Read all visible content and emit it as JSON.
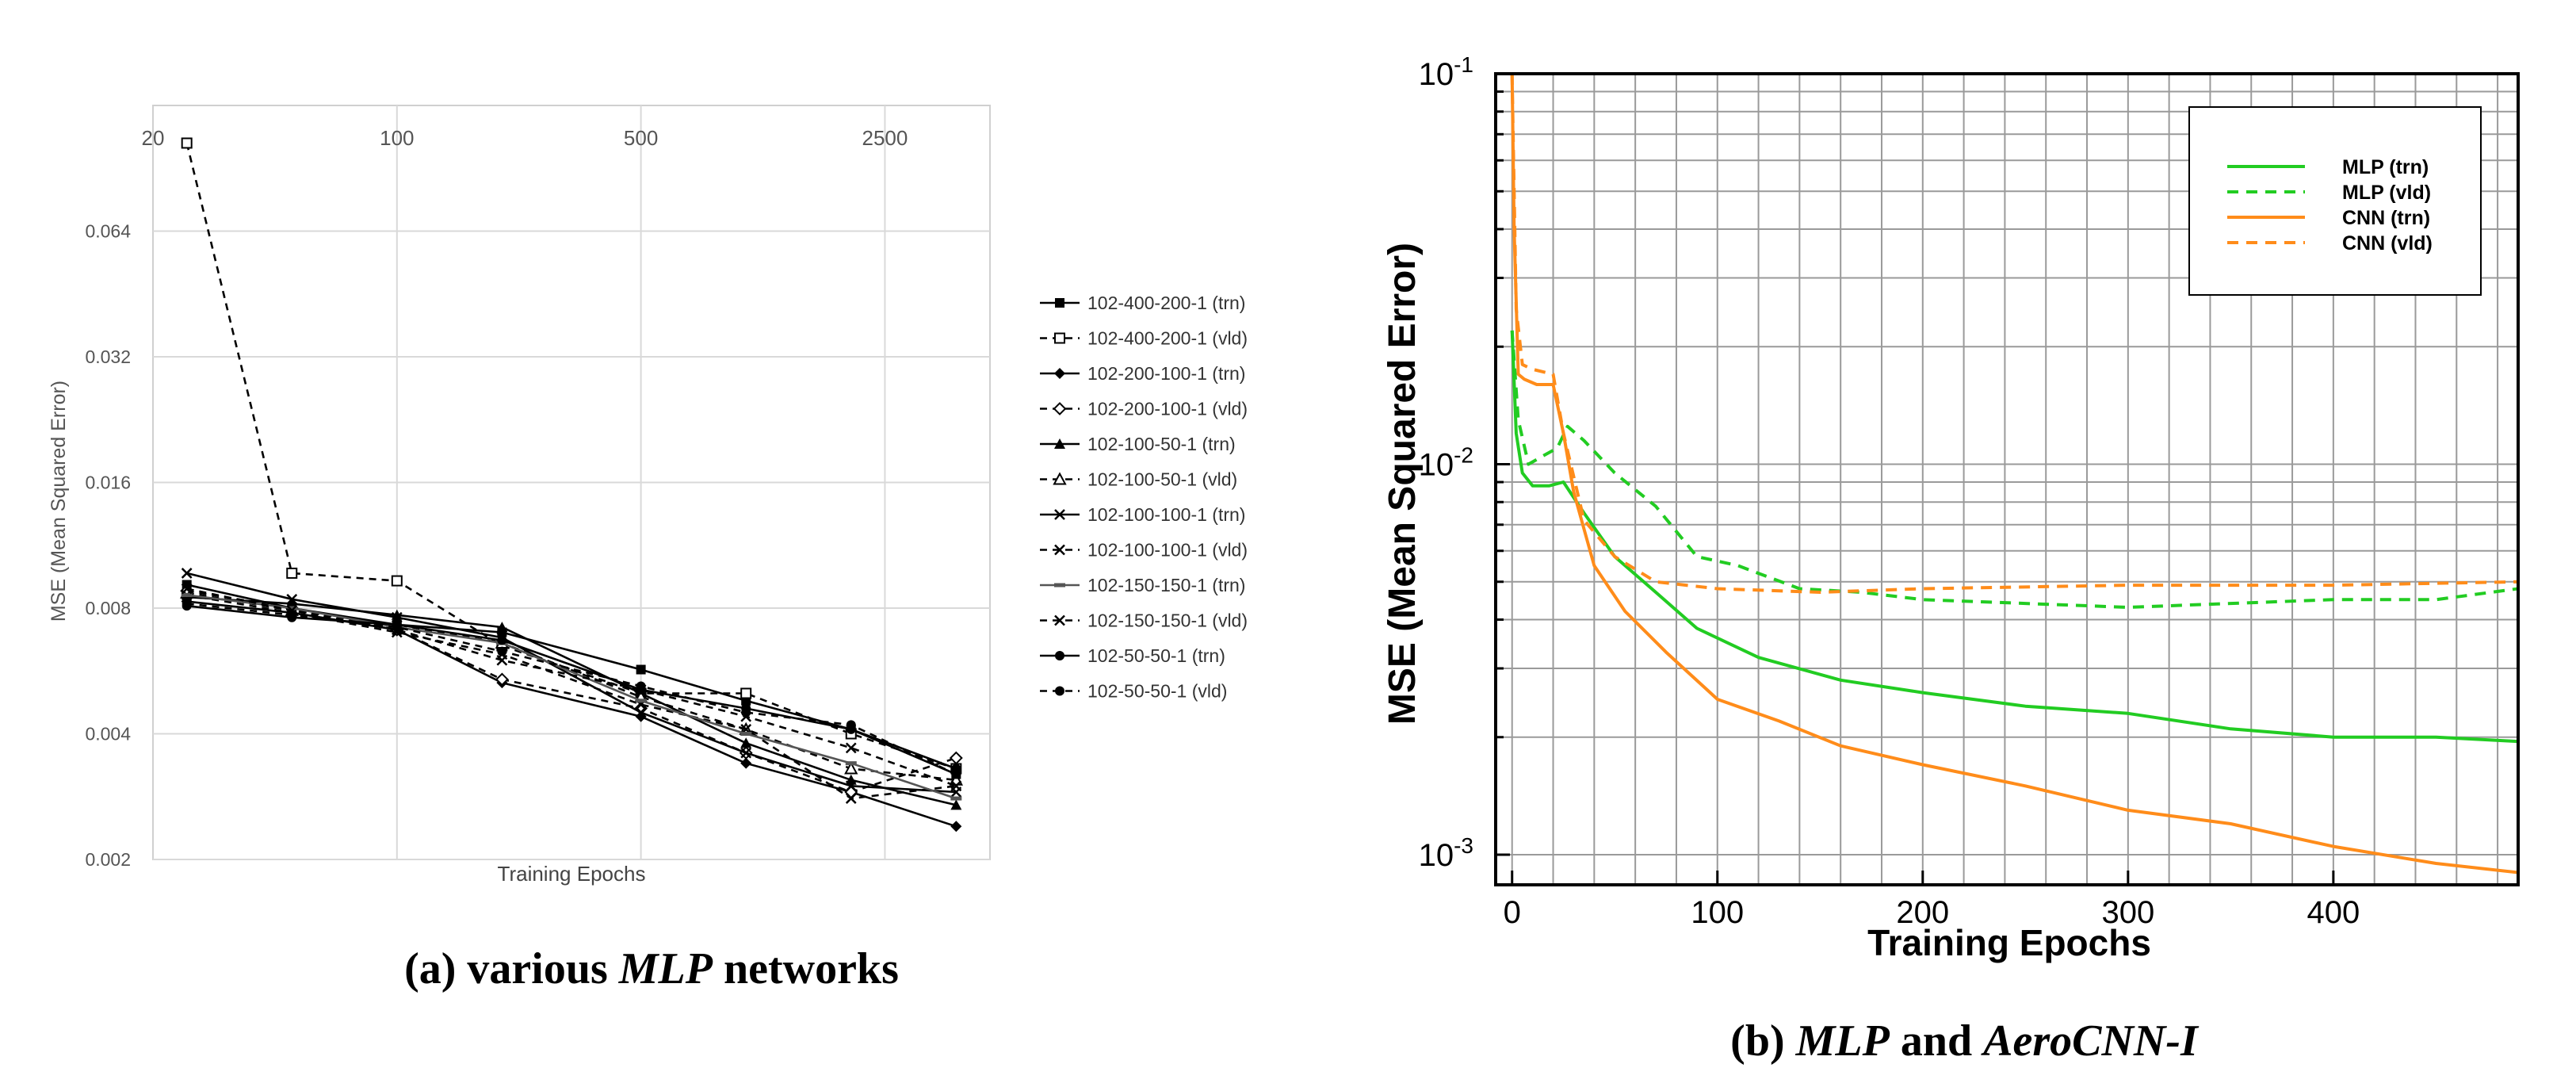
{
  "chart_data": [
    {
      "type": "line",
      "xlabel": "Training Epochs",
      "ylabel": "MSE (Mean Squared Error)",
      "x_scale": "log",
      "y_scale": "log",
      "xlim": [
        20,
        5000
      ],
      "ylim": [
        0.002,
        0.128
      ],
      "x_ticks": [
        "20",
        "100",
        "500",
        "2500"
      ],
      "x_tick_values": [
        20,
        100,
        500,
        2500
      ],
      "y_ticks": [
        "0.064",
        "0.032",
        "0.016",
        "0.008",
        "0.004",
        "0.002"
      ],
      "y_tick_values": [
        0.064,
        0.032,
        0.016,
        0.008,
        0.004,
        0.002
      ],
      "grid": true,
      "legend_position": "right",
      "x": [
        25,
        50,
        100,
        200,
        500,
        1000,
        2000,
        4000
      ],
      "series": [
        {
          "name": "102-400-200-1 (trn)",
          "marker": "square-filled",
          "dash": false,
          "values": [
            0.0091,
            0.008,
            0.0073,
            0.007,
            0.0057,
            0.0048,
            0.0041,
            0.0032
          ]
        },
        {
          "name": "102-400-200-1 (vld)",
          "marker": "square-open",
          "dash": true,
          "values": [
            0.104,
            0.0097,
            0.0093,
            0.0065,
            0.005,
            0.005,
            0.004,
            0.0033
          ]
        },
        {
          "name": "102-200-100-1 (trn)",
          "marker": "diamond-filled",
          "dash": false,
          "values": [
            0.0083,
            0.0078,
            0.0071,
            0.0053,
            0.0044,
            0.0034,
            0.0029,
            0.0024
          ]
        },
        {
          "name": "102-200-100-1 (vld)",
          "marker": "diamond-open",
          "dash": true,
          "values": [
            0.0088,
            0.008,
            0.0071,
            0.0054,
            0.0046,
            0.0036,
            0.0029,
            0.0035
          ]
        },
        {
          "name": "102-100-50-1 (trn)",
          "marker": "triangle-filled",
          "dash": false,
          "values": [
            0.0085,
            0.0082,
            0.0077,
            0.0072,
            0.005,
            0.0038,
            0.0031,
            0.0027
          ]
        },
        {
          "name": "102-100-50-1 (vld)",
          "marker": "triangle-open",
          "dash": true,
          "values": [
            0.0087,
            0.0079,
            0.0073,
            0.0066,
            0.0049,
            0.0041,
            0.0033,
            0.0031
          ]
        },
        {
          "name": "102-100-100-1 (trn)",
          "marker": "x",
          "dash": false,
          "values": [
            0.0097,
            0.0084,
            0.0076,
            0.0068,
            0.0045,
            0.0036,
            0.003,
            0.0029
          ]
        },
        {
          "name": "102-100-100-1 (vld)",
          "marker": "x",
          "dash": true,
          "values": [
            0.0086,
            0.0078,
            0.007,
            0.0062,
            0.0047,
            0.0041,
            0.0028,
            0.003
          ]
        },
        {
          "name": "102-150-150-1 (trn)",
          "marker": "dash",
          "dash": false,
          "values": [
            0.0086,
            0.008,
            0.0072,
            0.0066,
            0.0048,
            0.004,
            0.0034,
            0.0028
          ]
        },
        {
          "name": "102-150-150-1 (vld)",
          "marker": "x",
          "dash": true,
          "values": [
            0.0089,
            0.0079,
            0.0071,
            0.006,
            0.0051,
            0.0044,
            0.0037,
            0.003
          ]
        },
        {
          "name": "102-50-50-1 (trn)",
          "marker": "circle-filled",
          "dash": false,
          "values": [
            0.0081,
            0.0076,
            0.0073,
            0.0067,
            0.0051,
            0.0046,
            0.0041,
            0.0033
          ]
        },
        {
          "name": "102-50-50-1 (vld)",
          "marker": "circle-filled",
          "dash": true,
          "values": [
            0.0082,
            0.0077,
            0.0072,
            0.0063,
            0.0052,
            0.0045,
            0.0042,
            0.0032
          ]
        }
      ]
    },
    {
      "type": "line",
      "xlabel": "Training Epochs",
      "ylabel": "MSE (Mean Squared Error)",
      "x_scale": "linear",
      "y_scale": "log",
      "xlim": [
        -8,
        490
      ],
      "ylim": [
        0.0009,
        0.1
      ],
      "x_ticks": [
        "0",
        "100",
        "200",
        "300",
        "400"
      ],
      "x_tick_values": [
        0,
        100,
        200,
        300,
        400
      ],
      "y_ticks": [
        {
          "base": "10",
          "exp": "-1"
        },
        {
          "base": "10",
          "exp": "-2"
        },
        {
          "base": "10",
          "exp": "-3"
        }
      ],
      "y_tick_values": [
        0.1,
        0.01,
        0.001
      ],
      "grid": true,
      "legend_position": "top-right",
      "series": [
        {
          "name": "MLP (trn)",
          "color": "#22cc22",
          "dash": false,
          "x": [
            0,
            2,
            5,
            10,
            18,
            25,
            35,
            50,
            70,
            90,
            120,
            160,
            200,
            250,
            300,
            350,
            400,
            450,
            490
          ],
          "y": [
            0.022,
            0.012,
            0.0095,
            0.0088,
            0.0088,
            0.009,
            0.0075,
            0.0058,
            0.0047,
            0.0038,
            0.0032,
            0.0028,
            0.0026,
            0.0024,
            0.0023,
            0.0021,
            0.002,
            0.002,
            0.00195
          ]
        },
        {
          "name": "MLP (vld)",
          "color": "#22cc22",
          "dash": true,
          "x": [
            0,
            3,
            8,
            15,
            22,
            27,
            35,
            50,
            70,
            90,
            110,
            140,
            170,
            200,
            250,
            300,
            350,
            400,
            450,
            490
          ],
          "y": [
            0.022,
            0.013,
            0.01,
            0.0105,
            0.011,
            0.0125,
            0.0115,
            0.0095,
            0.0078,
            0.0058,
            0.0055,
            0.0048,
            0.0047,
            0.0045,
            0.0044,
            0.0043,
            0.0044,
            0.0045,
            0.0045,
            0.0048
          ]
        },
        {
          "name": "CNN (trn)",
          "color": "#ff8c1a",
          "dash": false,
          "x": [
            0,
            1,
            3,
            6,
            12,
            20,
            25,
            30,
            40,
            55,
            75,
            100,
            130,
            160,
            200,
            250,
            300,
            350,
            400,
            450,
            490
          ],
          "y": [
            0.1,
            0.04,
            0.017,
            0.0165,
            0.016,
            0.016,
            0.012,
            0.0085,
            0.0055,
            0.0042,
            0.0033,
            0.0025,
            0.0022,
            0.0019,
            0.0017,
            0.0015,
            0.0013,
            0.0012,
            0.00105,
            0.00095,
            0.0009
          ]
        },
        {
          "name": "CNN (vld)",
          "color": "#ff8c1a",
          "dash": true,
          "x": [
            0,
            2,
            5,
            10,
            20,
            25,
            35,
            50,
            70,
            100,
            150,
            200,
            300,
            400,
            490
          ],
          "y": [
            0.1,
            0.025,
            0.018,
            0.0175,
            0.017,
            0.012,
            0.0072,
            0.0058,
            0.005,
            0.0048,
            0.0047,
            0.0048,
            0.0049,
            0.0049,
            0.005
          ]
        }
      ]
    }
  ],
  "captions": {
    "left": {
      "prefix": "(a) various ",
      "em": "MLP",
      "suffix": " networks"
    },
    "right": {
      "prefix": "(b) ",
      "em1": "MLP",
      "mid": " and ",
      "em2": "AeroCNN-I"
    }
  }
}
